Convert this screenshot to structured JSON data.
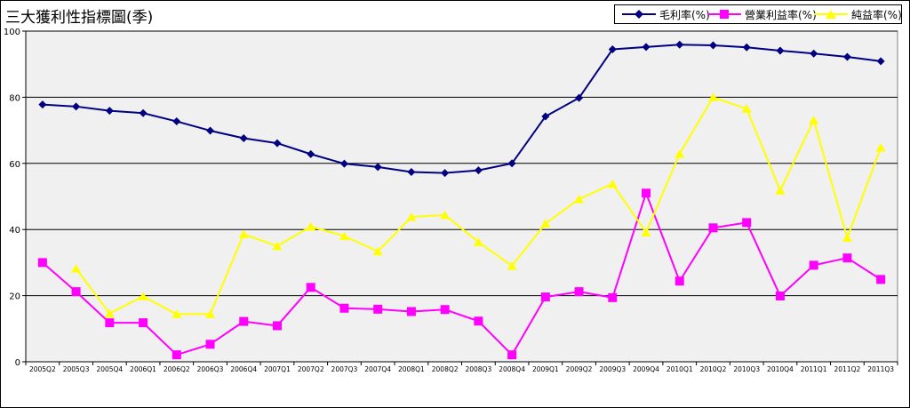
{
  "chart_data": {
    "type": "line",
    "title": "三大獲利性指標圖(季)",
    "categories": [
      "2005Q2",
      "2005Q3",
      "2005Q4",
      "2006Q1",
      "2006Q2",
      "2006Q3",
      "2006Q4",
      "2007Q1",
      "2007Q2",
      "2007Q3",
      "2007Q4",
      "2008Q1",
      "2008Q2",
      "2008Q3",
      "2008Q4",
      "2009Q1",
      "2009Q2",
      "2009Q3",
      "2009Q4",
      "2010Q1",
      "2010Q2",
      "2010Q3",
      "2010Q4",
      "2011Q1",
      "2011Q2",
      "2011Q3"
    ],
    "ylim": [
      0,
      100
    ],
    "yticks": [
      0,
      20,
      40,
      60,
      80,
      100
    ],
    "grid": true,
    "legend_position": "top-right",
    "series": [
      {
        "name": "毛利率(%)",
        "color": "#000080",
        "marker": "diamond",
        "values": [
          77.8,
          77.2,
          75.9,
          75.2,
          72.7,
          69.9,
          67.6,
          66.1,
          62.8,
          59.9,
          58.9,
          57.4,
          57.1,
          57.9,
          60.0,
          74.2,
          79.8,
          94.5,
          95.2,
          95.9,
          95.7,
          95.1,
          94.1,
          93.2,
          92.2,
          90.9
        ]
      },
      {
        "name": "營業利益率(%)",
        "color": "#ff00ff",
        "marker": "square",
        "values": [
          30.0,
          21.2,
          11.8,
          11.8,
          2.1,
          5.3,
          12.2,
          10.9,
          22.5,
          16.2,
          15.9,
          15.2,
          15.8,
          12.3,
          2.1,
          19.6,
          21.2,
          19.4,
          51.0,
          24.4,
          40.5,
          42.1,
          19.9,
          29.2,
          31.4,
          24.9
        ]
      },
      {
        "name": "純益率(%)",
        "color": "#ffff00",
        "marker": "triangle",
        "values": [
          null,
          28.2,
          14.6,
          19.8,
          14.4,
          14.4,
          38.6,
          35.0,
          40.9,
          38.0,
          33.4,
          43.8,
          44.4,
          36.2,
          29.0,
          41.8,
          49.2,
          53.8,
          39.1,
          62.9,
          80.0,
          76.5,
          51.8,
          73.1,
          37.5,
          64.8
        ]
      }
    ]
  }
}
